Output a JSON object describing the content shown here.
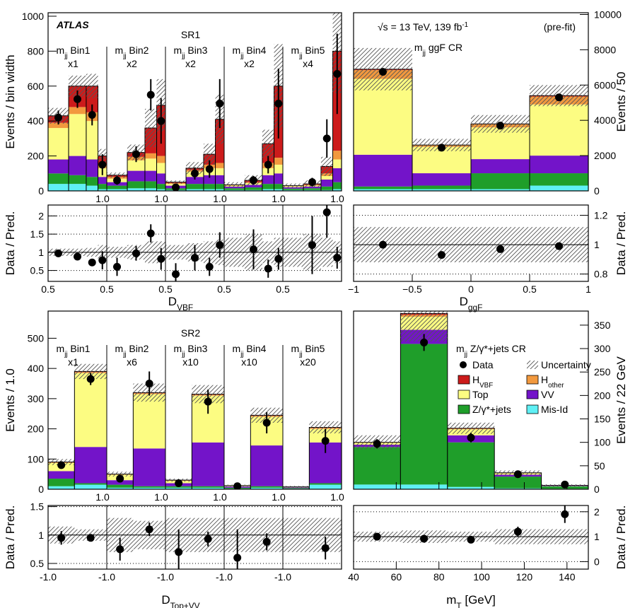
{
  "chart_data": [
    {
      "type": "stacked-histogram",
      "yside": "left",
      "brand": "ATLAS",
      "title": "SR1",
      "region_labels": [
        "m_{jj} Bin1",
        "m_{jj} Bin2",
        "m_{jj} Bin3",
        "m_{jj} Bin4",
        "m_{jj} Bin5"
      ],
      "region_scales": [
        "x1",
        "x2",
        "x2",
        "x2",
        "x4"
      ],
      "bins": [
        0,
        0.35,
        0.65,
        0.85,
        1,
        1.35,
        1.65,
        1.85,
        2,
        2.35,
        2.65,
        2.85,
        3,
        3.35,
        3.65,
        3.85,
        4,
        4.35,
        4.65,
        4.85,
        5
      ],
      "xlim": [
        0,
        5
      ],
      "inner_xticks": [
        {
          "value": 1,
          "label": "1.0"
        },
        {
          "value": 2,
          "label": "1.0"
        },
        {
          "value": 3,
          "label": "1.0"
        },
        {
          "value": 4,
          "label": "1.0"
        },
        {
          "value": 5,
          "label": "1.0"
        }
      ],
      "xticks": [
        {
          "value": 0,
          "label": "0.5"
        },
        {
          "value": 1,
          "label": "0.5"
        },
        {
          "value": 2,
          "label": "0.5"
        },
        {
          "value": 3,
          "label": "0.5"
        },
        {
          "value": 4,
          "label": "0.5"
        }
      ],
      "xlabel": "D_{VBF}",
      "ylim": [
        0,
        1020
      ],
      "yticks": [
        0,
        200,
        400,
        600,
        800,
        1000
      ],
      "ylabel": "Events / bin width",
      "series": [
        {
          "name": "Mis-Id",
          "color": "#5ff0f5",
          "values": [
            40,
            40,
            30,
            10,
            10,
            15,
            15,
            10,
            5,
            10,
            10,
            10,
            5,
            5,
            10,
            10,
            5,
            5,
            5,
            10
          ]
        },
        {
          "name": "Z/γ*+jets",
          "color": "#1f9e2a",
          "values": [
            60,
            50,
            50,
            30,
            20,
            40,
            40,
            30,
            10,
            30,
            30,
            30,
            10,
            15,
            30,
            30,
            8,
            10,
            20,
            40
          ]
        },
        {
          "name": "VV",
          "color": "#7314c9",
          "values": [
            80,
            110,
            100,
            40,
            20,
            60,
            60,
            60,
            15,
            40,
            50,
            50,
            10,
            15,
            50,
            60,
            8,
            10,
            40,
            80
          ]
        },
        {
          "name": "Top",
          "color": "#fcfc82",
          "values": [
            180,
            240,
            220,
            50,
            20,
            60,
            70,
            60,
            10,
            30,
            40,
            40,
            5,
            10,
            40,
            50,
            5,
            5,
            20,
            50
          ]
        },
        {
          "name": "H_{other}",
          "color": "#f2993e",
          "values": [
            30,
            40,
            50,
            20,
            10,
            20,
            30,
            40,
            5,
            10,
            20,
            30,
            3,
            5,
            30,
            40,
            2,
            5,
            15,
            50
          ]
        },
        {
          "name": "H_{VBF}",
          "color": "#cc1b1b",
          "values": [
            40,
            120,
            150,
            50,
            10,
            25,
            145,
            290,
            5,
            10,
            60,
            250,
            2,
            10,
            110,
            410,
            2,
            5,
            40,
            570
          ]
        }
      ],
      "data": {
        "values": [
          420,
          525,
          435,
          150,
          60,
          210,
          550,
          400,
          20,
          100,
          125,
          500,
          null,
          60,
          150,
          500,
          null,
          50,
          300,
          670
        ],
        "errors": [
          40,
          50,
          60,
          60,
          25,
          45,
          90,
          130,
          15,
          35,
          50,
          140,
          null,
          25,
          50,
          200,
          null,
          25,
          110,
          230
        ]
      },
      "uncertainty": [
        45,
        60,
        70,
        40,
        15,
        45,
        110,
        150,
        10,
        35,
        60,
        140,
        15,
        30,
        80,
        240,
        12,
        20,
        55,
        240
      ],
      "ratio": {
        "ylabel": "Data / Pred.",
        "ylim": [
          0.2,
          2.3
        ],
        "yticks": [
          0.5,
          1,
          1.5,
          2
        ],
        "reference": 1,
        "grid": true,
        "values": [
          0.97,
          0.88,
          0.72,
          0.78,
          0.6,
          0.97,
          1.52,
          0.82,
          0.4,
          0.85,
          0.6,
          1.2,
          null,
          1.08,
          0.55,
          0.82,
          null,
          1.2,
          2.1,
          0.85
        ],
        "errors": [
          0.08,
          0.08,
          0.1,
          0.25,
          0.25,
          0.2,
          0.25,
          0.3,
          0.3,
          0.35,
          0.25,
          0.35,
          null,
          0.55,
          0.25,
          0.3,
          null,
          0.8,
          0.7,
          0.3
        ],
        "band": [
          0.1,
          0.1,
          0.12,
          0.2,
          0.15,
          0.2,
          0.3,
          0.3,
          0.2,
          0.25,
          0.3,
          0.35,
          0.4,
          0.5,
          0.3,
          0.4,
          0.4,
          0.5,
          0.4,
          0.3
        ]
      }
    },
    {
      "type": "stacked-histogram",
      "yside": "right",
      "energy_label": "√s = 13 TeV, 139 fb^{-1}",
      "status": "(pre-fit)",
      "title": "m_{jj} ggF CR",
      "bins": [
        -1,
        -0.5,
        0,
        0.5,
        1
      ],
      "xlim": [
        -1,
        1
      ],
      "xticks": [
        {
          "value": -1,
          "label": "−1"
        },
        {
          "value": -0.5,
          "label": "−0.5"
        },
        0,
        0.5,
        1
      ],
      "xlabel": "D_{ggF}",
      "ylim": [
        0,
        10100
      ],
      "yticks": [
        0,
        2000,
        4000,
        6000,
        8000,
        10000
      ],
      "ylabel": "Events / 50",
      "series": [
        {
          "name": "Mis-Id",
          "color": "#5ff0f5",
          "values": [
            100,
            100,
            100,
            300
          ]
        },
        {
          "name": "Z/γ*+jets",
          "color": "#1f9e2a",
          "values": [
            150,
            200,
            900,
            700
          ]
        },
        {
          "name": "VV",
          "color": "#7314c9",
          "values": [
            1800,
            700,
            800,
            1000
          ]
        },
        {
          "name": "Top",
          "color": "#fcfc82",
          "values": [
            4300,
            1500,
            1800,
            2900
          ]
        },
        {
          "name": "H_{other}",
          "color": "#f2993e",
          "values": [
            500,
            90,
            180,
            450
          ]
        },
        {
          "name": "H_{VBF}",
          "color": "#cc1b1b",
          "values": [
            50,
            10,
            20,
            50
          ]
        }
      ],
      "data": {
        "values": [
          6750,
          2450,
          3700,
          5300
        ],
        "errors": [
          80,
          50,
          60,
          70
        ]
      },
      "uncertainty": [
        1200,
        350,
        500,
        600
      ],
      "ratio": {
        "ylabel": "Data / Pred.",
        "ylim": [
          0.75,
          1.27
        ],
        "yticks": [
          0.8,
          1,
          1.2
        ],
        "reference": 1,
        "grid": true,
        "values": [
          1.0,
          0.93,
          0.97,
          0.99
        ],
        "errors": [
          0.01,
          0.02,
          0.02,
          0.01
        ],
        "band": [
          0.12,
          0.12,
          0.12,
          0.12
        ]
      }
    },
    {
      "type": "stacked-histogram",
      "yside": "left",
      "title": "SR2",
      "region_labels": [
        "m_{jj} Bin1",
        "m_{jj} Bin2",
        "m_{jj} Bin3",
        "m_{jj} Bin4",
        "m_{jj} Bin5"
      ],
      "region_scales": [
        "x1",
        "x6",
        "x10",
        "x10",
        "x20"
      ],
      "bins": [
        0,
        0.45,
        1,
        1.45,
        2,
        2.45,
        3,
        3.45,
        4,
        4.45,
        5
      ],
      "xlim": [
        0,
        5
      ],
      "inner_xticks": [
        {
          "value": 1,
          "label": "1.0"
        },
        {
          "value": 2,
          "label": "1.0"
        },
        {
          "value": 3,
          "label": "1.0"
        },
        {
          "value": 4,
          "label": "1.0"
        },
        {
          "value": 5,
          "label": "1.0"
        }
      ],
      "xticks": [
        {
          "value": 0,
          "label": "-1.0"
        },
        {
          "value": 1,
          "label": "-1.0"
        },
        {
          "value": 2,
          "label": "-1.0"
        },
        {
          "value": 3,
          "label": "-1.0"
        },
        {
          "value": 4,
          "label": "-1.0"
        }
      ],
      "xlabel": "D_{Top+VV}",
      "ylim": [
        0,
        590
      ],
      "yticks": [
        0,
        100,
        200,
        300,
        400,
        500
      ],
      "ylabel": "Events / 1.0",
      "series": [
        {
          "name": "Mis-Id",
          "color": "#5ff0f5",
          "values": [
            10,
            15,
            5,
            5,
            5,
            5,
            2,
            5,
            2,
            15
          ]
        },
        {
          "name": "Z/γ*+jets",
          "color": "#1f9e2a",
          "values": [
            25,
            5,
            10,
            5,
            5,
            5,
            3,
            5,
            2,
            5
          ]
        },
        {
          "name": "VV",
          "color": "#7314c9",
          "values": [
            25,
            120,
            15,
            125,
            10,
            145,
            4,
            135,
            2,
            135
          ]
        },
        {
          "name": "Top",
          "color": "#fcfc82",
          "values": [
            27,
            245,
            18,
            180,
            8,
            155,
            2,
            95,
            1,
            45
          ]
        },
        {
          "name": "H_{other}",
          "color": "#f2993e",
          "values": [
            2,
            3,
            1,
            3,
            1,
            3,
            0.5,
            3,
            0.5,
            3
          ]
        },
        {
          "name": "H_{VBF}",
          "color": "#cc1b1b",
          "values": [
            1,
            2,
            1,
            2,
            1,
            2,
            0.5,
            2,
            0.5,
            2
          ]
        }
      ],
      "data": {
        "values": [
          80,
          365,
          35,
          350,
          20,
          290,
          10,
          220,
          null,
          160
        ],
        "errors": [
          10,
          20,
          10,
          40,
          7,
          40,
          5,
          35,
          null,
          40
        ]
      },
      "uncertainty": [
        10,
        25,
        8,
        30,
        5,
        30,
        3,
        25,
        3,
        20
      ],
      "ratio": {
        "ylabel": "Data / Pred.",
        "ylim": [
          0.4,
          1.52
        ],
        "yticks": [
          0.5,
          1,
          1.5
        ],
        "reference": 1,
        "grid": true,
        "values": [
          0.95,
          0.95,
          0.75,
          1.1,
          0.7,
          0.93,
          0.6,
          0.88,
          null,
          0.77
        ],
        "errors": [
          0.12,
          0.05,
          0.2,
          0.12,
          0.4,
          0.13,
          0.5,
          0.15,
          null,
          0.2
        ],
        "band": [
          0.15,
          0.1,
          0.3,
          0.25,
          0.3,
          0.3,
          0.3,
          0.3,
          0.3,
          0.3
        ]
      }
    },
    {
      "type": "stacked-histogram",
      "yside": "right",
      "title": "m_{jj} Z/γ*+jets CR",
      "legend": {
        "data": "Data",
        "uncertainty": "Uncertainty"
      },
      "bins": [
        40,
        62,
        84,
        106,
        128,
        150
      ],
      "xlim": [
        40,
        150
      ],
      "xticks": [
        40,
        60,
        80,
        100,
        120,
        140
      ],
      "xlabel": "m_{T} [GeV]",
      "ylim": [
        0,
        380
      ],
      "yticks": [
        0,
        50,
        100,
        150,
        200,
        250,
        300,
        350
      ],
      "ylabel": "Events / 22 GeV",
      "series": [
        {
          "name": "Mis-Id",
          "color": "#5ff0f5",
          "values": [
            10,
            10,
            5,
            2,
            1
          ]
        },
        {
          "name": "Z/γ*+jets",
          "color": "#1f9e2a",
          "values": [
            80,
            300,
            95,
            25,
            5
          ]
        },
        {
          "name": "VV",
          "color": "#7314c9",
          "values": [
            5,
            30,
            15,
            4,
            1
          ]
        },
        {
          "name": "Top",
          "color": "#fcfc82",
          "values": [
            4,
            28,
            13,
            3,
            1
          ]
        },
        {
          "name": "H_{other}",
          "color": "#f2993e",
          "values": [
            0.5,
            4,
            1,
            0.5,
            0.2
          ]
        },
        {
          "name": "H_{VBF}",
          "color": "#cc1b1b",
          "values": [
            0.5,
            3,
            1,
            0.5,
            0.1
          ]
        }
      ],
      "data": {
        "values": [
          97,
          313,
          110,
          32,
          10
        ],
        "errors": [
          10,
          18,
          10,
          6,
          3
        ]
      },
      "uncertainty": [
        15,
        60,
        12,
        5,
        2
      ],
      "ratio": {
        "ylabel": "Data / Pred.",
        "ylim": [
          -0.3,
          2.25
        ],
        "yticks": [
          0,
          1,
          2
        ],
        "reference": 1,
        "grid": true,
        "values": [
          1.0,
          0.92,
          0.88,
          1.2,
          1.9
        ],
        "errors": [
          0.1,
          0.05,
          0.08,
          0.2,
          0.35
        ],
        "band": [
          0.2,
          0.25,
          0.2,
          0.3,
          0.3
        ]
      }
    }
  ]
}
